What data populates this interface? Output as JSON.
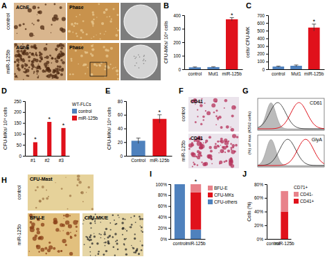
{
  "chart_data": [
    {
      "type": "bar",
      "title": "B",
      "y_label": "CFU-MKs/ 10⁴ cells",
      "categories": [
        "control",
        "Mut1",
        "miR-125b"
      ],
      "values": [
        14,
        16,
        370
      ],
      "errors": [
        3,
        3,
        12
      ],
      "colors": [
        "#4f81bd",
        "#4f81bd",
        "#e0111b"
      ],
      "ylim": [
        0,
        400
      ],
      "yticks": [
        0,
        100,
        200,
        300,
        400
      ],
      "annotations": [
        {
          "text": "*",
          "category": "miR-125b"
        }
      ]
    },
    {
      "type": "bar",
      "title": "C",
      "y_label": "cells/ CFU-MK",
      "categories": [
        "control",
        "Mut1",
        "miR-125b"
      ],
      "values": [
        35,
        45,
        540
      ],
      "errors": [
        6,
        10,
        45
      ],
      "colors": [
        "#4f81bd",
        "#4f81bd",
        "#e0111b"
      ],
      "ylim": [
        0,
        700
      ],
      "yticks": [
        0,
        100,
        200,
        300,
        400,
        500,
        600,
        700
      ],
      "annotations": [
        {
          "text": "*",
          "category": "miR-125b"
        }
      ]
    },
    {
      "type": "bar",
      "title": "D",
      "y_label": "CFU-MKs/ 10⁴ cells",
      "categories": [
        "#1",
        "#2",
        "#3"
      ],
      "series": [
        {
          "name": "control",
          "color": "#4f81bd",
          "values": [
            0,
            0,
            0
          ]
        },
        {
          "name": "miR-125b",
          "color": "#e0111b",
          "values": [
            62,
            155,
            127
          ]
        }
      ],
      "ylim": [
        0,
        250
      ],
      "yticks": [
        0,
        50,
        100,
        150,
        200,
        250
      ],
      "legend": "right",
      "legend_title": "WT-FLCs",
      "annotations": [
        {
          "text": "*",
          "category": "#1"
        },
        {
          "text": "*",
          "category": "#2"
        },
        {
          "text": "*",
          "category": "#3"
        }
      ]
    },
    {
      "type": "bar",
      "title": "E",
      "y_label": "CFU-MKs/ 10⁴ cells",
      "categories": [
        "Control",
        "miR-125b"
      ],
      "values": [
        22,
        54
      ],
      "errors": [
        4,
        6
      ],
      "colors": [
        "#4f81bd",
        "#e0111b"
      ],
      "ylim": [
        0,
        80
      ],
      "yticks": [
        0,
        20,
        40,
        60,
        80
      ],
      "annotations": [
        {
          "text": "*",
          "category": "miR-125b"
        }
      ]
    },
    {
      "type": "bar",
      "title": "I",
      "stacked": true,
      "categories": [
        "control",
        "miR-125b"
      ],
      "series": [
        {
          "name": "CFU-others",
          "color": "#4f81bd",
          "values": [
            100,
            17
          ]
        },
        {
          "name": "CFU-MKs",
          "color": "#e0111b",
          "values": [
            0,
            68
          ]
        },
        {
          "name": "BFU-E",
          "color": "#e8828a",
          "values": [
            0,
            15
          ]
        }
      ],
      "ylim": [
        0,
        100
      ],
      "yticks": [
        {
          "value": 0,
          "label": "0%"
        },
        {
          "value": 20,
          "label": "20%"
        },
        {
          "value": 40,
          "label": "40%"
        },
        {
          "value": 60,
          "label": "60%"
        },
        {
          "value": 80,
          "label": "80%"
        },
        {
          "value": 100,
          "label": "100%"
        }
      ],
      "legend": "right",
      "annotations": [
        {
          "text": "*",
          "category": "miR-125b"
        }
      ]
    },
    {
      "type": "bar",
      "title": "J",
      "y_label": "Cells (%)",
      "stacked": true,
      "categories": [
        "control",
        "miR-125b"
      ],
      "series": [
        {
          "name": "CD41+",
          "color": "#e0111b",
          "values": [
            0,
            40
          ]
        },
        {
          "name": "CD41-",
          "color": "#e8828a",
          "values": [
            0,
            30
          ]
        }
      ],
      "ylim": [
        0,
        80
      ],
      "yticks": [
        {
          "value": 0,
          "label": "0%"
        },
        {
          "value": 20,
          "label": "20%"
        },
        {
          "value": 40,
          "label": "40%"
        },
        {
          "value": 60,
          "label": "60%"
        },
        {
          "value": 80,
          "label": "80%"
        }
      ],
      "legend": "right",
      "legend_title": "CD71+"
    }
  ],
  "image_panels": [
    {
      "title": "A",
      "rows": [
        "control",
        "miR-125b"
      ],
      "labels": [
        [
          "AChE",
          "Phase"
        ],
        [
          "AChE",
          "Phase"
        ]
      ]
    },
    {
      "title": "F",
      "rows": [
        "control",
        "miR-125b"
      ],
      "labels": [
        [
          "CD41"
        ],
        [
          "CD41"
        ]
      ]
    },
    {
      "title": "G",
      "y_label": "(%) of max (K562 cells)",
      "labels": [
        "CD61",
        "GlyA"
      ]
    },
    {
      "title": "H",
      "rows": [
        "control",
        "miR-125b"
      ],
      "labels": [
        [
          "CFU-Mast"
        ],
        [
          "BFU-E",
          "CFU-MK/E"
        ]
      ]
    }
  ]
}
